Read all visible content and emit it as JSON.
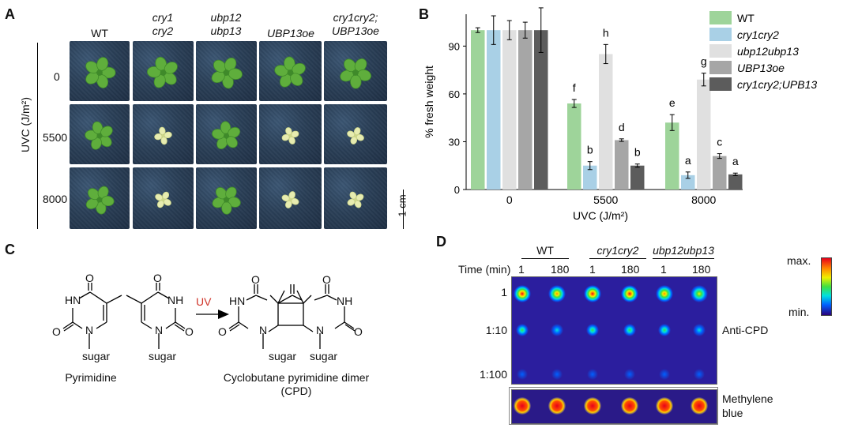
{
  "panelA": {
    "label": "A",
    "columns": [
      {
        "l1": "WT",
        "l2": ""
      },
      {
        "l1": "cry1",
        "l2": "cry2"
      },
      {
        "l1": "ubp12",
        "l2": "ubp13"
      },
      {
        "l1": "UBP13oe",
        "l2": ""
      },
      {
        "l1": "cry1cry2;",
        "l2": "UBP13oe"
      }
    ],
    "rows": [
      "0",
      "5500",
      "8000"
    ],
    "y_title": "UVC (J/m²)",
    "scale_label": "1 cm",
    "plant_states": [
      [
        "green",
        "green",
        "green",
        "green",
        "green"
      ],
      [
        "green",
        "bleached",
        "green",
        "bleached",
        "bleached"
      ],
      [
        "green",
        "bleached",
        "green",
        "bleached",
        "bleached"
      ]
    ]
  },
  "panelB": {
    "label": "B"
  },
  "chart_data": {
    "type": "bar",
    "title": "",
    "xlabel": "UVC (J/m²)",
    "ylabel": "% fresh weight",
    "ylim": [
      0,
      110
    ],
    "yticks": [
      "0",
      "30",
      "60",
      "90"
    ],
    "categories": [
      "0",
      "5500",
      "8000"
    ],
    "series": [
      {
        "name": "WT",
        "color": "#9ed49a",
        "values": [
          100,
          54,
          42
        ],
        "errors": [
          1.5,
          2.5,
          5
        ],
        "letters": [
          "",
          "f",
          "e"
        ]
      },
      {
        "name": "cry1cry2",
        "color": "#a9d0e6",
        "values": [
          100,
          15,
          9
        ],
        "errors": [
          9,
          2.5,
          2
        ],
        "letters": [
          "",
          "b",
          "a"
        ]
      },
      {
        "name": "ubp12ubp13",
        "color": "#e0e0e0",
        "values": [
          100,
          85,
          69
        ],
        "errors": [
          6,
          6,
          4
        ],
        "letters": [
          "",
          "h",
          "g"
        ]
      },
      {
        "name": "UBP13oe",
        "color": "#a6a6a6",
        "values": [
          100,
          31,
          21
        ],
        "errors": [
          5,
          0.8,
          1.5
        ],
        "letters": [
          "",
          "d",
          "c"
        ]
      },
      {
        "name": "cry1cry2;UPB13",
        "color": "#5c5c5c",
        "values": [
          100,
          15,
          9.5
        ],
        "errors": [
          14,
          1,
          0.8
        ],
        "letters": [
          "",
          "b",
          "a"
        ]
      }
    ]
  },
  "panelC": {
    "label": "C",
    "uv": "UV",
    "uv_color": "#d0352a",
    "pyrimidine": "Pyrimidine",
    "cpd_line1": "Cyclobutane pyrimidine dimer",
    "cpd_line2": "(CPD)",
    "atoms": {
      "O": "O",
      "HN": "HN",
      "N": "N",
      "NH": "NH",
      "sugar": "sugar"
    }
  },
  "panelD": {
    "label": "D",
    "groups": [
      "WT",
      "cry1cry2",
      "ubp12ubp13"
    ],
    "time_label": "Time (min)",
    "times": [
      "1",
      "180",
      "1",
      "180",
      "1",
      "180"
    ],
    "dilutions": [
      "1",
      "1:10",
      "1:100"
    ],
    "anti_label": "Anti-CPD",
    "methylene_l1": "Methylene",
    "methylene_l2": "blue",
    "scale_max": "max.",
    "scale_min": "min.",
    "spot_intensity": [
      [
        0.95,
        0.75,
        0.9,
        0.95,
        0.7,
        0.55
      ],
      [
        0.42,
        0.3,
        0.38,
        0.38,
        0.36,
        0.2
      ],
      [
        0.1,
        0.08,
        0.1,
        0.1,
        0.09,
        0.08
      ]
    ]
  }
}
